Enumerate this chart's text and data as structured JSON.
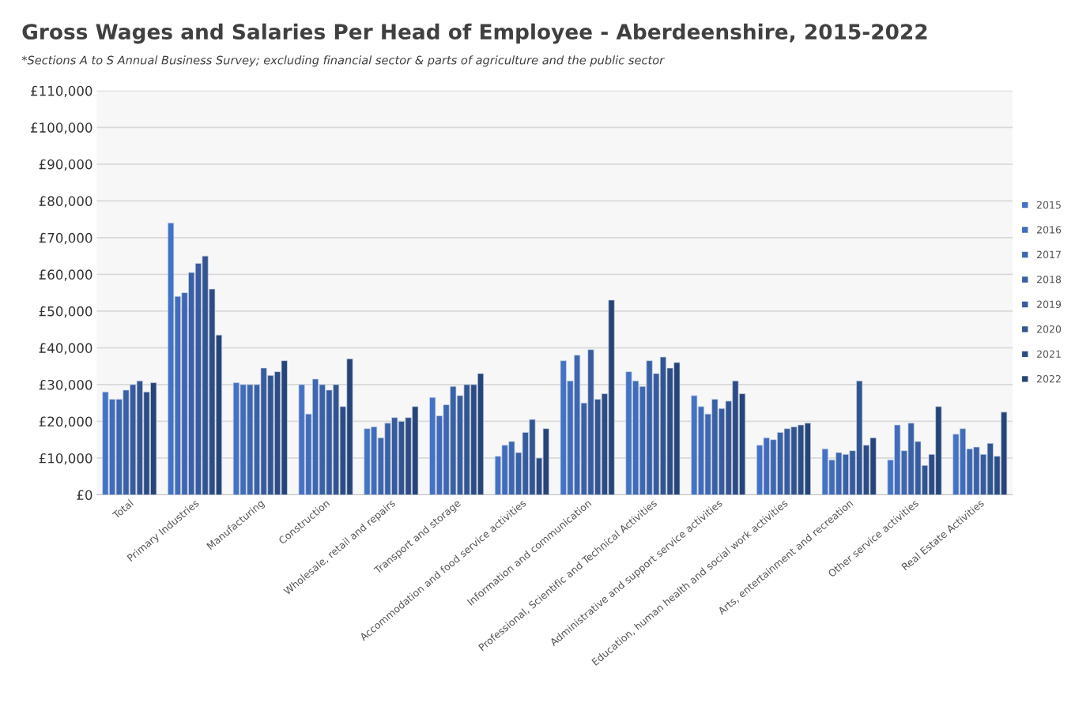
{
  "chart_data": {
    "type": "bar",
    "title": "Gross Wages and Salaries Per Head of Employee - Aberdeenshire, 2015-2022",
    "subtitle": "*Sections A to S Annual Business Survey; excluding financial sector & parts of agriculture and the public sector",
    "categories": [
      "Total",
      "Primary Industries",
      "Manufacturing",
      "Construction",
      "Wholesale, retail and repairs",
      "Transport and storage",
      "Accommodation and food service activities",
      "Information and communication",
      "Professional, Scientific and Technical Activities",
      "Administrative and support service activities",
      "Education, human health and social work activities",
      "Arts, entertainment and recreation",
      "Other service activities",
      "Real Estate Activities"
    ],
    "series": [
      {
        "name": "2015",
        "color": "#4472c4",
        "values": [
          28000,
          74000,
          30500,
          30000,
          18000,
          26500,
          10500,
          36500,
          33500,
          27000,
          13500,
          12500,
          9500,
          16500
        ]
      },
      {
        "name": "2016",
        "color": "#416cba",
        "values": [
          26000,
          54000,
          30000,
          22000,
          18500,
          21500,
          13500,
          31000,
          31000,
          24000,
          15500,
          9500,
          19000,
          18000
        ]
      },
      {
        "name": "2017",
        "color": "#3e67b0",
        "values": [
          26000,
          55000,
          30000,
          31500,
          15500,
          24500,
          14500,
          38000,
          29500,
          22000,
          15000,
          11500,
          12000,
          12500
        ]
      },
      {
        "name": "2018",
        "color": "#3a61a6",
        "values": [
          28500,
          60500,
          30000,
          30000,
          19500,
          29500,
          11500,
          25000,
          36500,
          26000,
          17000,
          11000,
          19500,
          13000
        ]
      },
      {
        "name": "2019",
        "color": "#375b9c",
        "values": [
          30000,
          63000,
          34500,
          28500,
          21000,
          27000,
          17000,
          39500,
          33000,
          23500,
          18000,
          12000,
          14500,
          11000
        ]
      },
      {
        "name": "2020",
        "color": "#33558f",
        "values": [
          31000,
          65000,
          32500,
          30000,
          20000,
          30000,
          20500,
          26000,
          37500,
          25500,
          18500,
          31000,
          8000,
          14000
        ]
      },
      {
        "name": "2021",
        "color": "#2d4c83",
        "values": [
          28000,
          56000,
          33500,
          24000,
          21000,
          30000,
          10000,
          27500,
          34500,
          31000,
          19000,
          13500,
          11000,
          10500
        ]
      },
      {
        "name": "2022",
        "color": "#264478",
        "values": [
          30500,
          43500,
          36500,
          37000,
          24000,
          33000,
          18000,
          53000,
          36000,
          27500,
          19500,
          15500,
          24000,
          22500
        ]
      }
    ],
    "ylim": [
      0,
      110000
    ],
    "yticks": [
      {
        "value": 0,
        "label": "£0"
      },
      {
        "value": 10000,
        "label": "£10,000"
      },
      {
        "value": 20000,
        "label": "£20,000"
      },
      {
        "value": 30000,
        "label": "£30,000"
      },
      {
        "value": 40000,
        "label": "£40,000"
      },
      {
        "value": 50000,
        "label": "£50,000"
      },
      {
        "value": 60000,
        "label": "£60,000"
      },
      {
        "value": 70000,
        "label": "£70,000"
      },
      {
        "value": 80000,
        "label": "£80,000"
      },
      {
        "value": 90000,
        "label": "£90,000"
      },
      {
        "value": 100000,
        "label": "£100,000"
      },
      {
        "value": 110000,
        "label": "£110,000"
      }
    ],
    "grid": "y",
    "legend": "right"
  }
}
